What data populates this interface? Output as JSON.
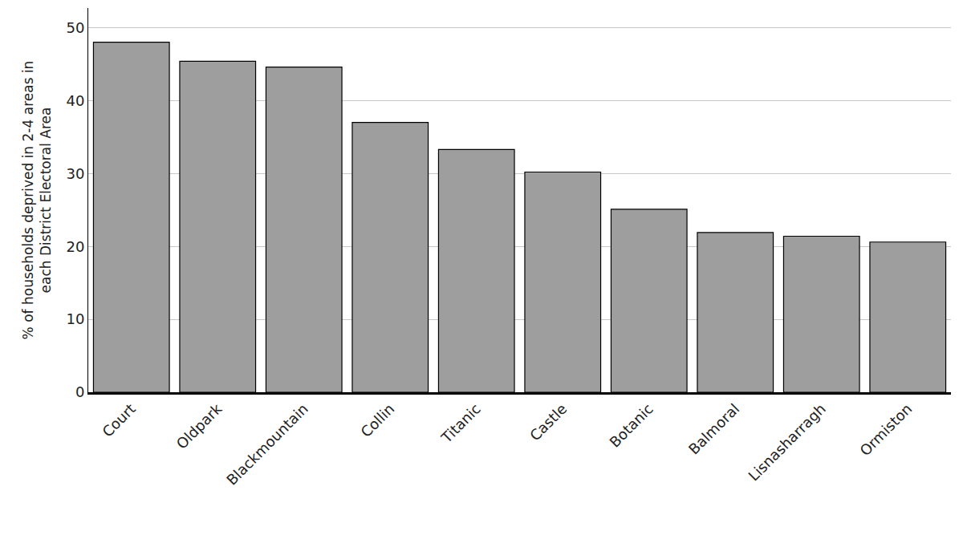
{
  "chart_data": {
    "type": "bar",
    "y_label": "% of households deprived in 2-4 areas in each District Electoral Area",
    "categories": [
      "Court",
      "Oldpark",
      "Blackmountain",
      "Collin",
      "Titanic",
      "Castle",
      "Botanic",
      "Balmoral",
      "Lisnasharragh",
      "Ormiston"
    ],
    "values": [
      48,
      45.4,
      44.6,
      37,
      33.3,
      30.2,
      25.1,
      21.9,
      21.4,
      20.6
    ],
    "color": "#9e9e9e",
    "ylim": [
      0,
      52.7
    ],
    "yticks": [
      0,
      10,
      20,
      30,
      40,
      50
    ],
    "grid": true
  }
}
